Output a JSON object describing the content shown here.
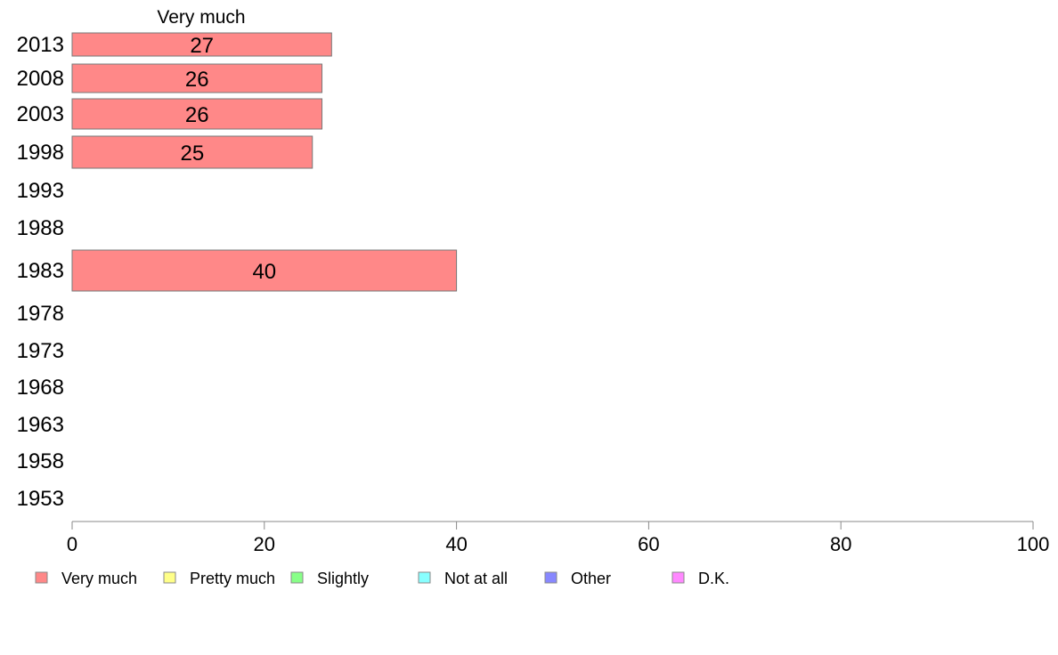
{
  "chart_data": {
    "type": "bar",
    "orientation": "horizontal",
    "series_header": "Very much",
    "categories": [
      "2013",
      "2008",
      "2003",
      "1998",
      "1993",
      "1988",
      "1983",
      "1978",
      "1973",
      "1968",
      "1963",
      "1958",
      "1953"
    ],
    "series": [
      {
        "name": "Very much",
        "color": "#ff8888",
        "values": [
          27,
          26,
          26,
          25,
          null,
          null,
          40,
          null,
          null,
          null,
          null,
          null,
          null
        ],
        "labels": [
          "27",
          "26",
          "26",
          "25",
          "",
          "",
          "40",
          "",
          "",
          "",
          "",
          "",
          ""
        ]
      }
    ],
    "xlim": [
      0,
      100
    ],
    "xticks": [
      "0",
      "20",
      "40",
      "60",
      "80",
      "100"
    ],
    "grid": false,
    "legend_position": "bottom",
    "legend": [
      {
        "label": "Very much",
        "color": "#ff8888"
      },
      {
        "label": "Pretty much",
        "color": "#ffff88"
      },
      {
        "label": "Slightly",
        "color": "#88ff88"
      },
      {
        "label": "Not at all",
        "color": "#88ffff"
      },
      {
        "label": "Other",
        "color": "#8888ff"
      },
      {
        "label": "D.K.",
        "color": "#ff88ff"
      }
    ]
  }
}
